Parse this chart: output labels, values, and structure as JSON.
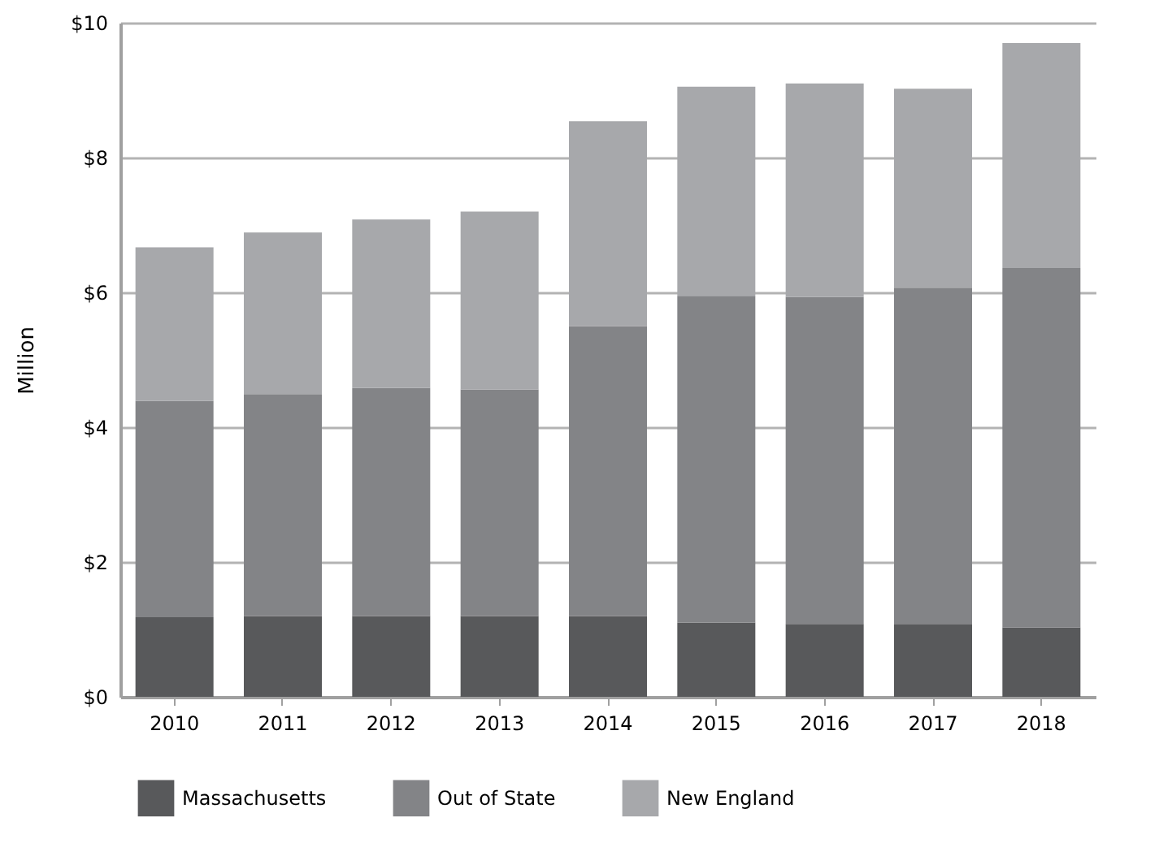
{
  "chart_data": {
    "type": "bar",
    "stacked": true,
    "ylabel": "Million",
    "categories": [
      "2010",
      "2011",
      "2012",
      "2013",
      "2014",
      "2015",
      "2016",
      "2017",
      "2018"
    ],
    "series": [
      {
        "name": "Massachusetts",
        "color": "#58595b",
        "values": [
          1.18,
          1.2,
          1.2,
          1.2,
          1.2,
          1.1,
          1.08,
          1.08,
          1.03
        ]
      },
      {
        "name": "Out of State",
        "color": "#838487",
        "values": [
          3.21,
          3.29,
          3.38,
          3.36,
          4.3,
          4.85,
          4.85,
          4.99,
          5.33
        ]
      },
      {
        "name": "New England",
        "color": "#a7a8ab",
        "values": [
          2.28,
          2.4,
          2.5,
          2.64,
          3.04,
          3.1,
          3.17,
          2.95,
          3.34
        ]
      }
    ],
    "ylim": [
      0,
      10
    ],
    "yticks": [
      {
        "value": 0,
        "label": "$0"
      },
      {
        "value": 2,
        "label": "$2"
      },
      {
        "value": 4,
        "label": "$4"
      },
      {
        "value": 6,
        "label": "$6"
      },
      {
        "value": 8,
        "label": "$8"
      },
      {
        "value": 10,
        "label": "$10"
      }
    ],
    "grid": "y",
    "legend": "bottom"
  }
}
